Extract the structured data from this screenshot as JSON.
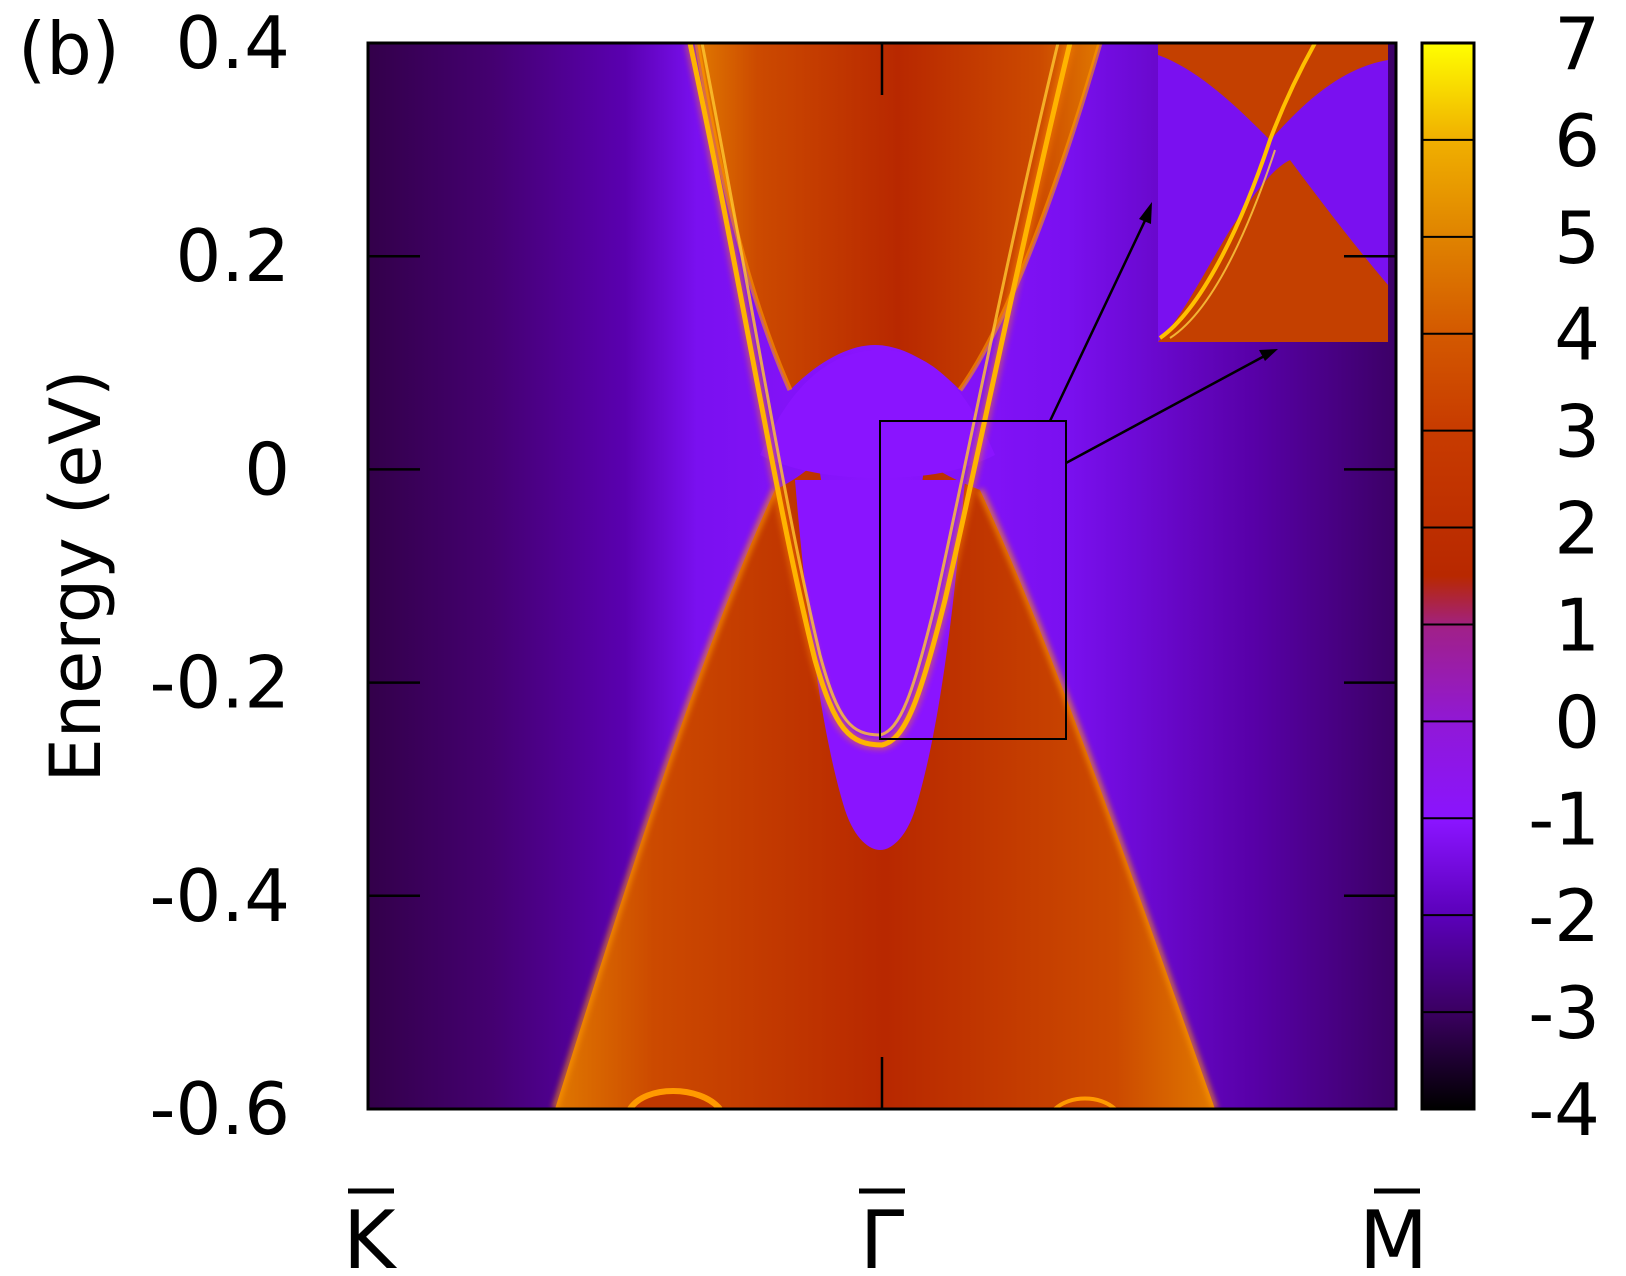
{
  "panel_label": "(b)",
  "chart_data": {
    "type": "heatmap",
    "title": "",
    "ylabel": "Energy (eV)",
    "xlabel": "",
    "ylim": [
      -0.6,
      0.4
    ],
    "yticks": [
      0.4,
      0.2,
      0,
      -0.2,
      -0.4,
      -0.6
    ],
    "ytick_labels": [
      "0.4",
      "0.2",
      "0",
      "-0.2",
      "-0.4",
      "-0.6"
    ],
    "xlim": [
      -1,
      1
    ],
    "xticks": [
      -1,
      0,
      1
    ],
    "xtick_labels": [
      "K",
      "Γ",
      "M"
    ],
    "xtick_overbar": true,
    "colorbar": {
      "range": [
        -4,
        7
      ],
      "ticks": [
        7,
        6,
        5,
        4,
        3,
        2,
        1,
        0,
        -1,
        -2,
        -3,
        -4
      ],
      "tick_labels": [
        "7",
        "6",
        "5",
        "4",
        "3",
        "2",
        "1",
        "0",
        "-1",
        "-2",
        "-3",
        "-4"
      ],
      "colormap": [
        {
          "value": -4,
          "color": "#000000"
        },
        {
          "value": -3,
          "color": "#3a0060"
        },
        {
          "value": -2,
          "color": "#5a00b8"
        },
        {
          "value": -1,
          "color": "#8a14ff"
        },
        {
          "value": 0,
          "color": "#9018d8"
        },
        {
          "value": 1,
          "color": "#a0208a"
        },
        {
          "value": 2,
          "color": "#b82800"
        },
        {
          "value": 3,
          "color": "#c83c00"
        },
        {
          "value": 4,
          "color": "#d45a00"
        },
        {
          "value": 5,
          "color": "#e08400"
        },
        {
          "value": 6,
          "color": "#f0b000"
        },
        {
          "value": 7,
          "color": "#ffff00"
        }
      ]
    },
    "features": {
      "bulk_conduction_bottom_eV": 0.11,
      "bulk_valence_top_eV": -0.02,
      "surface_state_minimum": {
        "k": 0.0,
        "energy": -0.255
      },
      "surface_state_crossings_at_0eV_k": [
        -0.2,
        0.19
      ],
      "zoom_box": {
        "k": [
          0.0,
          0.36
        ],
        "energy": [
          -0.25,
          0.045
        ]
      },
      "inset": "magnified view of zoom box"
    }
  },
  "colors": {
    "background": "#ffffff",
    "axes": "#000000",
    "surface_state": "#ffb400",
    "bulk_band": "#c83c00",
    "gap_region": "#8a14ff"
  }
}
